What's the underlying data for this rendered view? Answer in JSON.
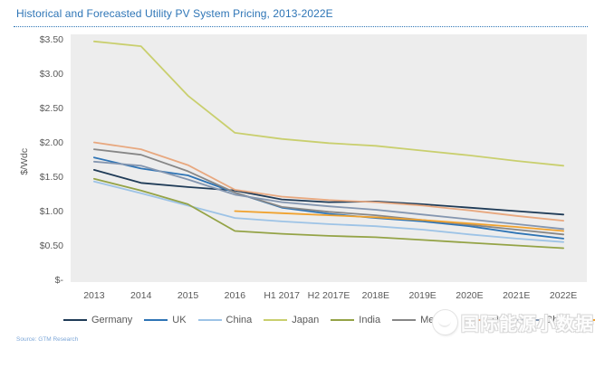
{
  "title": "Historical and Forecasted Utility PV System Pricing, 2013-2022E",
  "source_note": "Source: GTM Research",
  "watermark_text": "国际能源小数据",
  "colors": {
    "title_accent": "#2e75b6",
    "frame_border": "#e03a2f",
    "axis_text": "#595959",
    "plot_background": "#ededed"
  },
  "chart_data": {
    "type": "line",
    "title": "Historical and Forecasted Utility PV System Pricing, 2013-2022E",
    "xlabel": "",
    "ylabel": "$/Wdc",
    "ylim": [
      0,
      3.5
    ],
    "grid": false,
    "legend_position": "bottom",
    "plot_background": "#ededed",
    "yticks": [
      {
        "label": "$3.50",
        "value": 3.5
      },
      {
        "label": "$3.00",
        "value": 3.0
      },
      {
        "label": "$2.50",
        "value": 2.5
      },
      {
        "label": "$2.00",
        "value": 2.0
      },
      {
        "label": "$1.50",
        "value": 1.5
      },
      {
        "label": "$1.00",
        "value": 1.0
      },
      {
        "label": "$0.50",
        "value": 0.5
      },
      {
        "label": "$-",
        "value": 0.0
      }
    ],
    "categories": [
      "2013",
      "2014",
      "2015",
      "2016",
      "H1 2017",
      "H2 2017E",
      "2018E",
      "2019E",
      "2020E",
      "2021E",
      "2022E"
    ],
    "series": [
      {
        "name": "Germany",
        "color": "#1f3b57",
        "values": [
          1.6,
          1.41,
          1.35,
          1.3,
          1.17,
          1.13,
          1.14,
          1.1,
          1.05,
          1.0,
          0.95
        ]
      },
      {
        "name": "UK",
        "color": "#2e74b5",
        "values": [
          1.78,
          1.62,
          1.52,
          1.27,
          1.05,
          0.96,
          0.9,
          0.85,
          0.78,
          0.68,
          0.6
        ]
      },
      {
        "name": "China",
        "color": "#9dc3e6",
        "values": [
          1.43,
          1.26,
          1.08,
          0.9,
          0.85,
          0.81,
          0.78,
          0.73,
          0.66,
          0.6,
          0.55
        ]
      },
      {
        "name": "Japan",
        "color": "#c9cf6e",
        "values": [
          3.47,
          3.4,
          2.68,
          2.14,
          2.05,
          1.99,
          1.95,
          1.88,
          1.81,
          1.73,
          1.66
        ]
      },
      {
        "name": "India",
        "color": "#94a346",
        "values": [
          1.47,
          1.3,
          1.1,
          0.71,
          0.67,
          0.64,
          0.62,
          0.58,
          0.54,
          0.5,
          0.46
        ]
      },
      {
        "name": "Mexico",
        "color": "#878787",
        "values": [
          1.9,
          1.82,
          1.58,
          1.27,
          1.06,
          0.99,
          0.94,
          0.87,
          0.8,
          0.73,
          0.66
        ]
      },
      {
        "name": "US",
        "color": "#e8a87f",
        "values": [
          2.0,
          1.9,
          1.67,
          1.31,
          1.21,
          1.16,
          1.13,
          1.08,
          1.01,
          0.93,
          0.86
        ]
      },
      {
        "name": "Chile",
        "color": "#8496b0",
        "values": [
          1.72,
          1.66,
          1.46,
          1.24,
          1.13,
          1.07,
          1.02,
          0.95,
          0.88,
          0.81,
          0.74
        ]
      },
      {
        "name": "Egypt",
        "color": "#f0a22e",
        "values": [
          null,
          null,
          null,
          1.0,
          0.97,
          0.94,
          0.91,
          0.87,
          0.82,
          0.77,
          0.71
        ]
      }
    ]
  }
}
